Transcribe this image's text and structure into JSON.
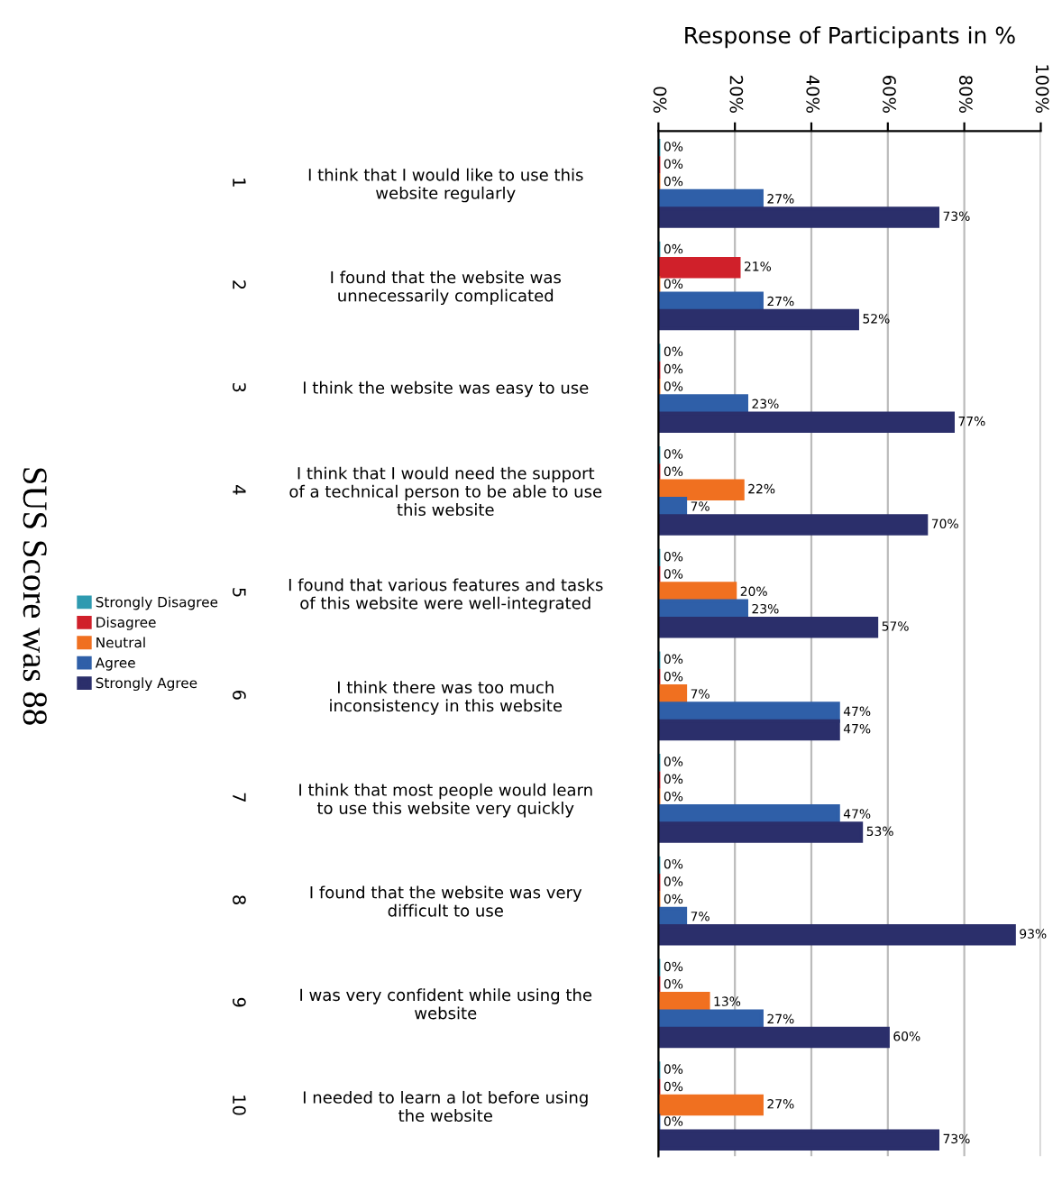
{
  "chart_data": {
    "type": "bar",
    "orientation": "horizontal",
    "title": "SUS Score was 88",
    "xlabel": "Response of Participants in %",
    "categories": [
      "I think that I would like to use this\nwebsite regularly",
      "I found that the website was\nunnecessarily complicated",
      "I think the website was easy to use",
      "I think that I would need the support\nof a technical person to be able to use\nthis website",
      "I found that various features and tasks\nof this website were well-integrated",
      "I think there was too much\ninconsistency in this website",
      "I think that most people would learn\nto use this website very quickly",
      "I found that the website was very\ndifficult to use",
      "I was very confident while using the\nwebsite",
      "I needed to learn a lot before using\nthe website"
    ],
    "series": [
      {
        "name": "Strongly Disagree",
        "color": "#2e9ab0",
        "values": [
          0,
          0,
          0,
          0,
          0,
          0,
          0,
          0,
          0,
          0
        ],
        "value_labels": [
          "0%",
          "0%",
          "0%",
          "0%",
          "0%",
          "0%",
          "0%",
          "0%",
          "0%",
          "0%"
        ]
      },
      {
        "name": "Disagree",
        "color": "#d0202a",
        "values": [
          0,
          21,
          0,
          0,
          0,
          0,
          0,
          0,
          0,
          0
        ],
        "value_labels": [
          "0%",
          "21%",
          "0%",
          "0%",
          "0%",
          "0%",
          "0%",
          "0%",
          "0%",
          "0%"
        ]
      },
      {
        "name": "Neutral",
        "color": "#f07020",
        "values": [
          0,
          0,
          0,
          22,
          20,
          7,
          0,
          0,
          13,
          27
        ],
        "value_labels": [
          "0%",
          "0%",
          "0%",
          "22%",
          "20%",
          "7%",
          "0%",
          "0%",
          "13%",
          "27%"
        ]
      },
      {
        "name": "Agree",
        "color": "#2f5fa8",
        "values": [
          27,
          27,
          23,
          7,
          23,
          47,
          47,
          7,
          27,
          0
        ],
        "value_labels": [
          "27%",
          "27%",
          "23%",
          "7%",
          "23%",
          "47%",
          "47%",
          "7%",
          "27%",
          "0%"
        ]
      },
      {
        "name": "Strongly Agree",
        "color": "#2b2f6b",
        "values": [
          73,
          52,
          77,
          70,
          57,
          47,
          53,
          93,
          60,
          73
        ],
        "value_labels": [
          "73%",
          "52%",
          "77%",
          "70%",
          "57%",
          "47%",
          "53%",
          "93%",
          "60%",
          "73%"
        ]
      }
    ],
    "xlim": [
      0,
      100
    ],
    "xticks": [
      {
        "value": 0,
        "label": "0%"
      },
      {
        "value": 20,
        "label": "20%"
      },
      {
        "value": 40,
        "label": "40%"
      },
      {
        "value": 60,
        "label": "60%"
      },
      {
        "value": 80,
        "label": "80%"
      },
      {
        "value": 100,
        "label": "100%"
      }
    ],
    "grid": "x",
    "legend": "left",
    "annotations": [
      "1",
      "2",
      "3",
      "4",
      "5",
      "6",
      "7",
      "8",
      "9",
      "10"
    ]
  }
}
